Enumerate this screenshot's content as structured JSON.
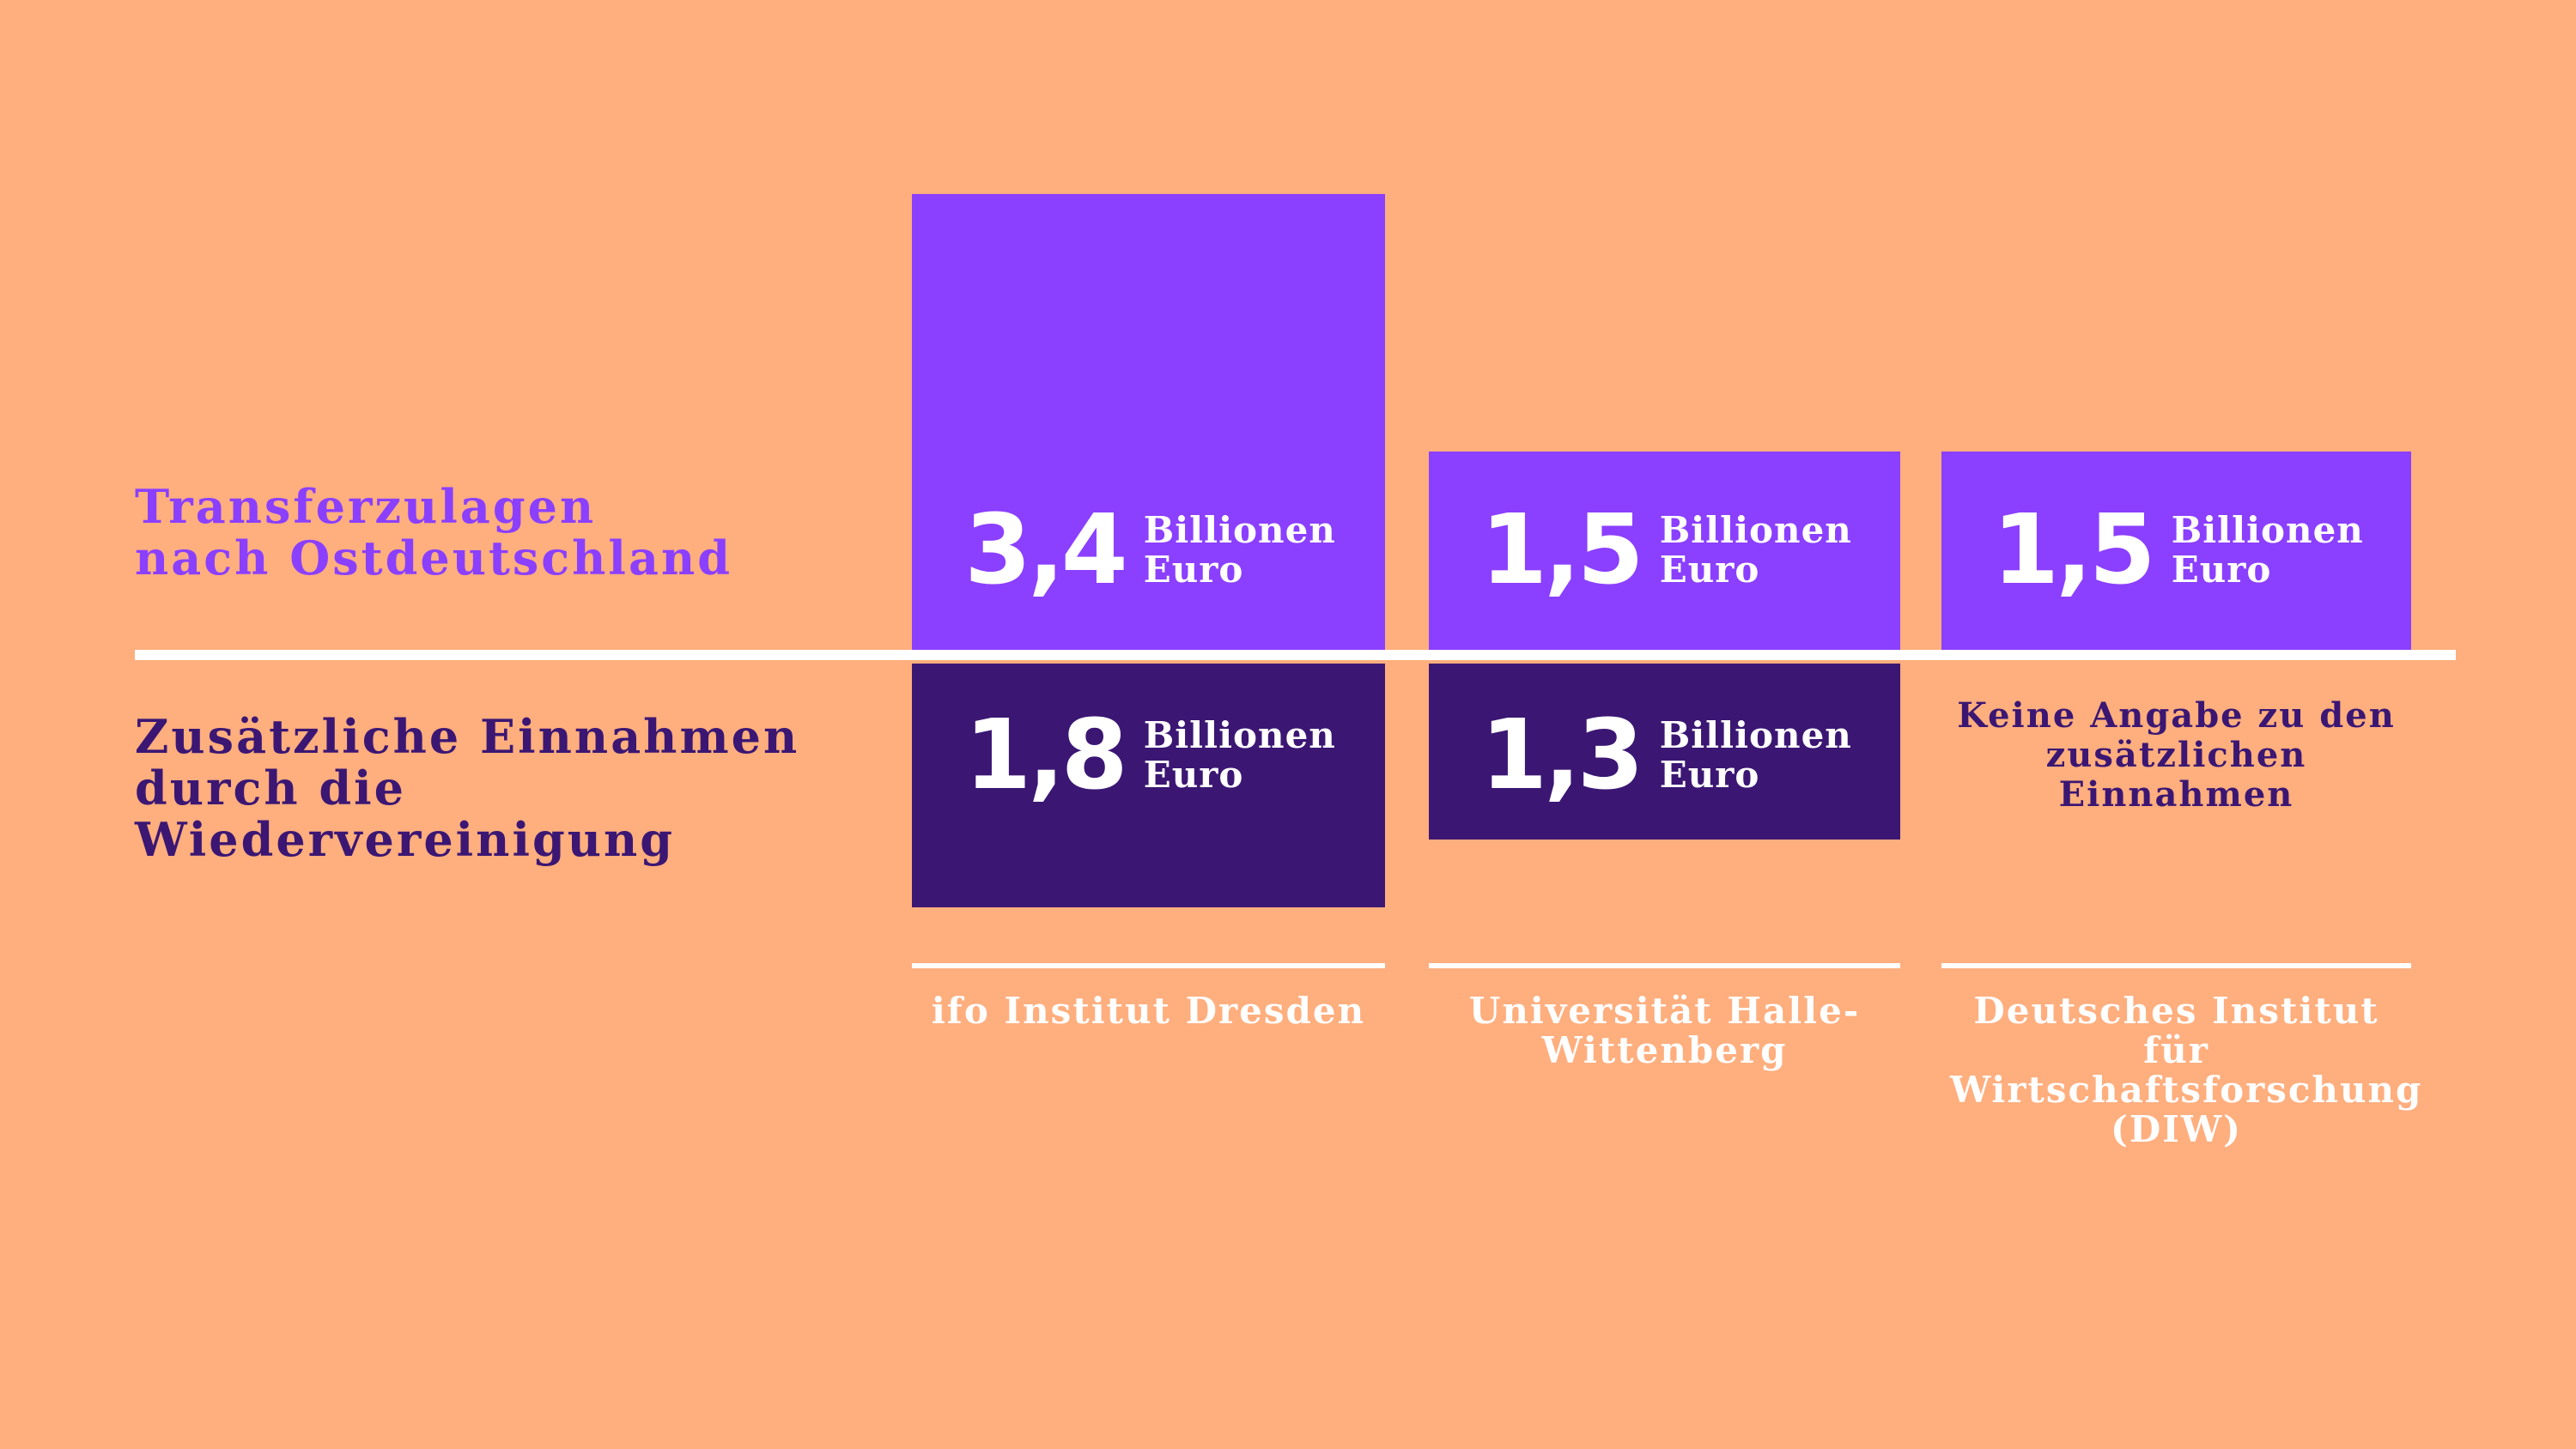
{
  "colors": {
    "background": "#FFAE7E",
    "transfer": "#8B3FFF",
    "income": "#3B1773",
    "line": "#FFFFFF"
  },
  "chart_data": {
    "type": "bar",
    "categories": [
      "ifo Institut Dresden",
      "Universität Halle-Wittenberg",
      "Deutsches Institut für Wirtschaftsforschung (DIW)"
    ],
    "series": [
      {
        "name": "Transferzulagen nach Ostdeutschland",
        "values": [
          3.4,
          1.5,
          1.5
        ],
        "labels": [
          "3,4",
          "1,5",
          "1,5"
        ]
      },
      {
        "name": "Zusätzliche Einnahmen durch die Wiedervereinigung",
        "values": [
          1.8,
          1.3,
          null
        ],
        "labels": [
          "1,8",
          "1,3",
          null
        ]
      }
    ],
    "unit": "Billionen Euro",
    "unit_line1": "Billionen",
    "unit_line2": "Euro",
    "missing_note": "Keine Angabe zu den zusätzlichen Einnahmen",
    "layout": "diverging bars above/below a white baseline; legend labels on left"
  }
}
